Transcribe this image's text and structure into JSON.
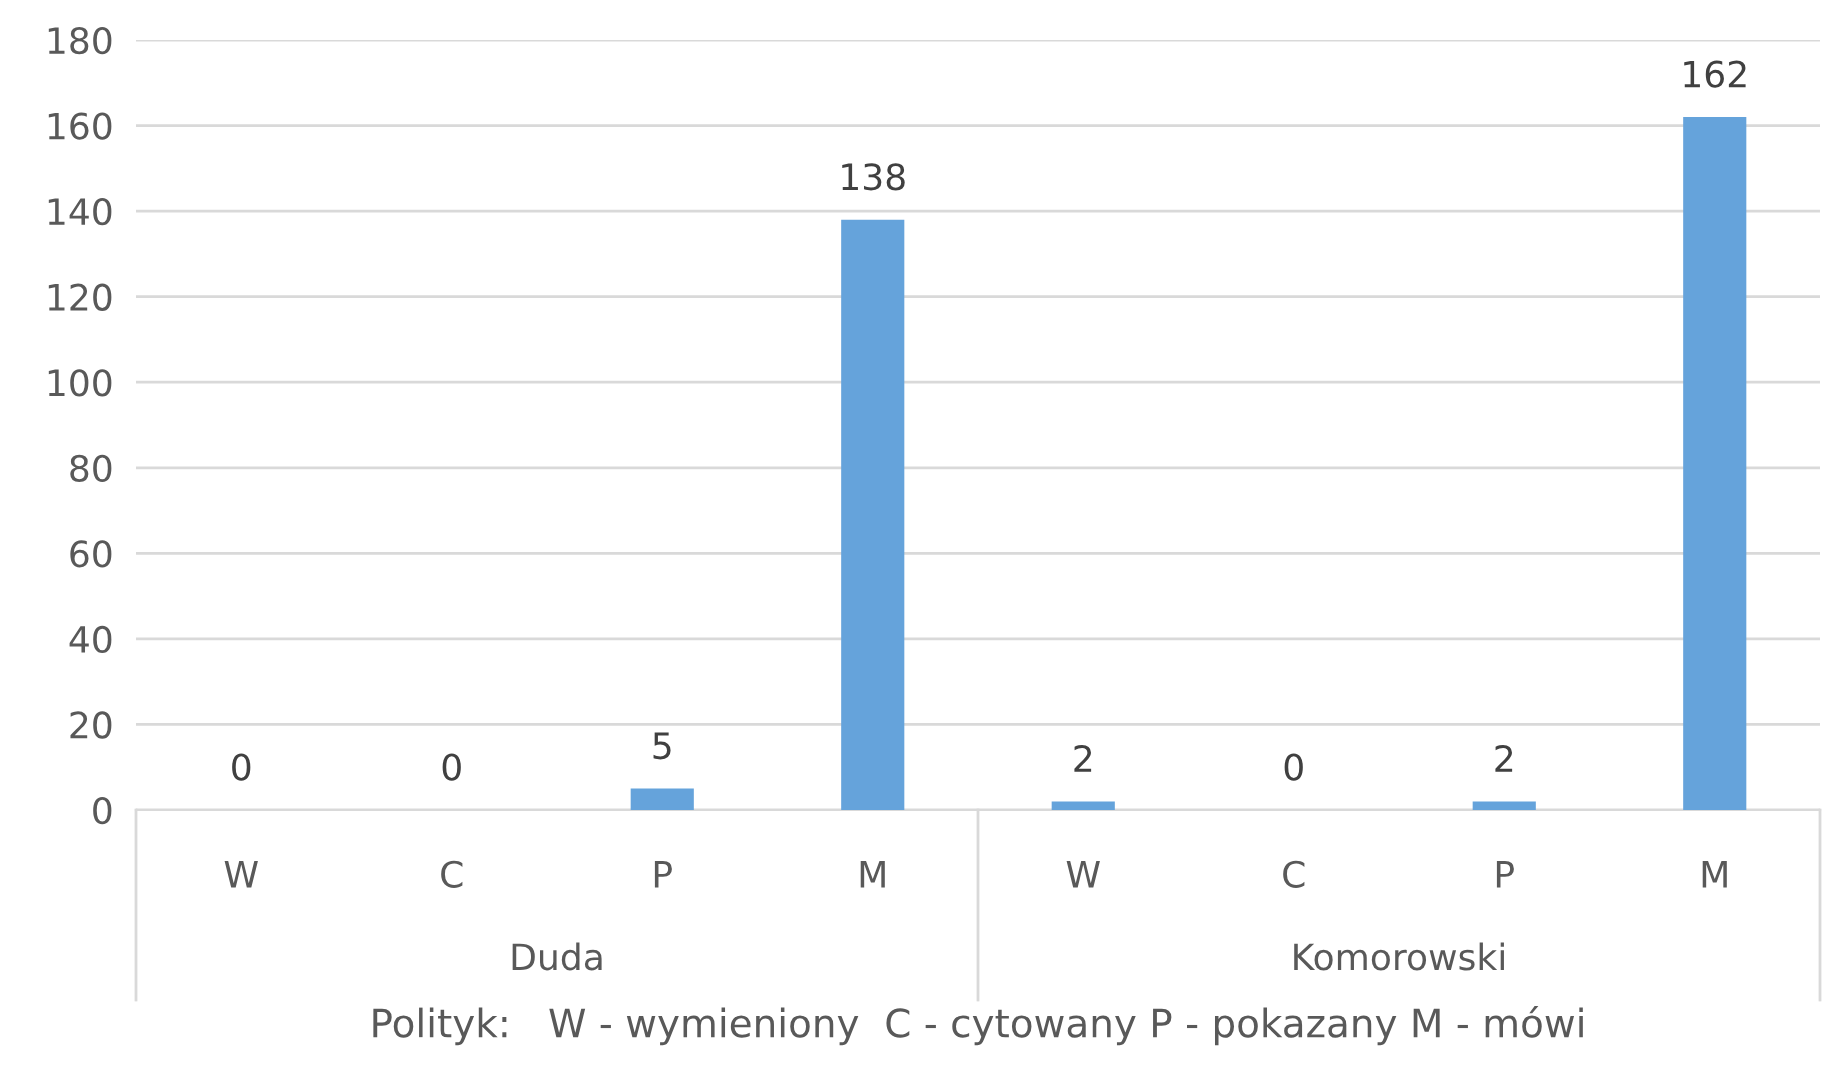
{
  "chart_data": {
    "type": "bar",
    "categories": [
      "W",
      "C",
      "P",
      "M",
      "W",
      "C",
      "P",
      "M"
    ],
    "values": [
      0,
      0,
      5,
      138,
      2,
      0,
      2,
      162
    ],
    "color": "#65a3db",
    "ylim": [
      0,
      180
    ],
    "yticks": [
      0,
      20,
      40,
      60,
      80,
      100,
      120,
      140,
      160,
      180
    ],
    "grid": "y",
    "data_labels": true,
    "xlabel": "Polityk:   W - wymieniony  C - cytowany P - pokazany M - mówi",
    "annotations": [
      "Duda",
      "Komorowski"
    ]
  }
}
